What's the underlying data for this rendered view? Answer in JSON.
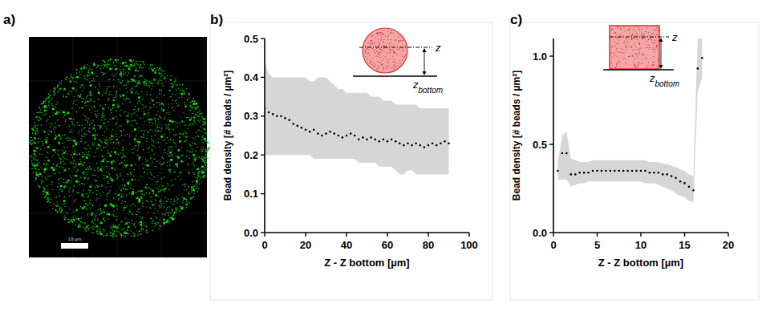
{
  "figure": {
    "panel_labels": [
      "a)",
      "b)",
      "c)"
    ],
    "scale_bar": "10 µm"
  },
  "chart_data": [
    {
      "type": "line",
      "x_label": "Z - Z bottom [µm]",
      "y_label": "Bead density [# beads / µm²]",
      "xlim": [
        0,
        100
      ],
      "xticks": [
        0,
        20,
        40,
        60,
        80,
        100
      ],
      "ylim": [
        0,
        0.5
      ],
      "yticks": [
        {
          "value": 0,
          "label": "0.0"
        },
        0.1,
        0.2,
        0.3,
        0.4,
        0.5
      ],
      "annotations": [
        {
          "text": "z"
        },
        {
          "text": "z",
          "subscript": "bottom"
        }
      ],
      "x": [
        0,
        2,
        4,
        6,
        8,
        10,
        12,
        14,
        16,
        18,
        20,
        22,
        24,
        26,
        28,
        30,
        32,
        34,
        36,
        38,
        40,
        42,
        44,
        46,
        48,
        50,
        52,
        54,
        56,
        58,
        60,
        62,
        64,
        66,
        68,
        70,
        72,
        74,
        76,
        78,
        80,
        82,
        84,
        86,
        88,
        90
      ],
      "series": [
        {
          "color": "#000000",
          "marker": "dot",
          "line_style": "none",
          "values": [
            0.32,
            0.31,
            0.305,
            0.3,
            0.3,
            0.295,
            0.29,
            0.28,
            0.275,
            0.27,
            0.265,
            0.26,
            0.265,
            0.255,
            0.25,
            0.255,
            0.26,
            0.255,
            0.25,
            0.245,
            0.25,
            0.255,
            0.25,
            0.24,
            0.245,
            0.24,
            0.245,
            0.24,
            0.235,
            0.24,
            0.235,
            0.24,
            0.235,
            0.23,
            0.225,
            0.23,
            0.225,
            0.23,
            0.225,
            0.22,
            0.225,
            0.23,
            0.225,
            0.23,
            0.235,
            0.23
          ],
          "lower": [
            0.2,
            0.2,
            0.2,
            0.2,
            0.2,
            0.2,
            0.2,
            0.2,
            0.2,
            0.2,
            0.2,
            0.2,
            0.19,
            0.19,
            0.19,
            0.19,
            0.19,
            0.19,
            0.19,
            0.19,
            0.19,
            0.19,
            0.19,
            0.18,
            0.18,
            0.18,
            0.18,
            0.18,
            0.17,
            0.17,
            0.17,
            0.17,
            0.16,
            0.15,
            0.15,
            0.16,
            0.16,
            0.15,
            0.15,
            0.15,
            0.15,
            0.15,
            0.15,
            0.15,
            0.15,
            0.15
          ],
          "upper": [
            0.44,
            0.41,
            0.4,
            0.4,
            0.4,
            0.4,
            0.4,
            0.4,
            0.4,
            0.4,
            0.4,
            0.39,
            0.39,
            0.4,
            0.4,
            0.4,
            0.39,
            0.38,
            0.37,
            0.37,
            0.36,
            0.36,
            0.36,
            0.36,
            0.36,
            0.36,
            0.35,
            0.35,
            0.35,
            0.34,
            0.34,
            0.34,
            0.33,
            0.33,
            0.33,
            0.33,
            0.33,
            0.33,
            0.32,
            0.32,
            0.32,
            0.32,
            0.32,
            0.32,
            0.32,
            0.32
          ]
        }
      ]
    },
    {
      "type": "line",
      "x_label": "Z - Z bottom [µm]",
      "y_label": "Bead density [# beads / µm²]",
      "xlim": [
        0,
        20
      ],
      "xticks": [
        0,
        5,
        10,
        15,
        20
      ],
      "ylim": [
        0,
        1.1
      ],
      "yticks": [
        {
          "value": 0,
          "label": "0.0"
        },
        0.5,
        {
          "value": 1,
          "label": "1.0"
        }
      ],
      "annotations": [
        {
          "text": "z"
        },
        {
          "text": "z",
          "subscript": "bottom"
        }
      ],
      "x": [
        0.5,
        1,
        1.5,
        2,
        2.5,
        3,
        3.5,
        4,
        4.5,
        5,
        5.5,
        6,
        6.5,
        7,
        7.5,
        8,
        8.5,
        9,
        9.5,
        10,
        10.5,
        11,
        11.5,
        12,
        12.5,
        13,
        13.5,
        14,
        14.5,
        15,
        15.5,
        16,
        16.5,
        17
      ],
      "series": [
        {
          "color": "#000000",
          "marker": "dot",
          "line_style": "none",
          "values": [
            0.35,
            0.45,
            0.45,
            0.33,
            0.33,
            0.34,
            0.34,
            0.34,
            0.35,
            0.35,
            0.35,
            0.35,
            0.35,
            0.35,
            0.35,
            0.35,
            0.35,
            0.35,
            0.35,
            0.35,
            0.35,
            0.34,
            0.34,
            0.34,
            0.33,
            0.33,
            0.32,
            0.31,
            0.29,
            0.28,
            0.26,
            0.24,
            0.93,
            0.99
          ],
          "lower": [
            0.3,
            0.3,
            0.3,
            0.26,
            0.27,
            0.28,
            0.28,
            0.29,
            0.29,
            0.29,
            0.29,
            0.29,
            0.29,
            0.29,
            0.29,
            0.29,
            0.29,
            0.29,
            0.29,
            0.29,
            0.28,
            0.28,
            0.28,
            0.27,
            0.26,
            0.25,
            0.24,
            0.22,
            0.21,
            0.2,
            0.18,
            0.17,
            0.8,
            0.88
          ],
          "upper": [
            0.4,
            0.55,
            0.57,
            0.42,
            0.41,
            0.4,
            0.4,
            0.4,
            0.41,
            0.41,
            0.41,
            0.41,
            0.41,
            0.41,
            0.41,
            0.41,
            0.41,
            0.41,
            0.41,
            0.41,
            0.41,
            0.4,
            0.4,
            0.4,
            0.39,
            0.39,
            0.38,
            0.37,
            0.36,
            0.35,
            0.33,
            0.32,
            1.1,
            1.1
          ]
        }
      ]
    }
  ]
}
